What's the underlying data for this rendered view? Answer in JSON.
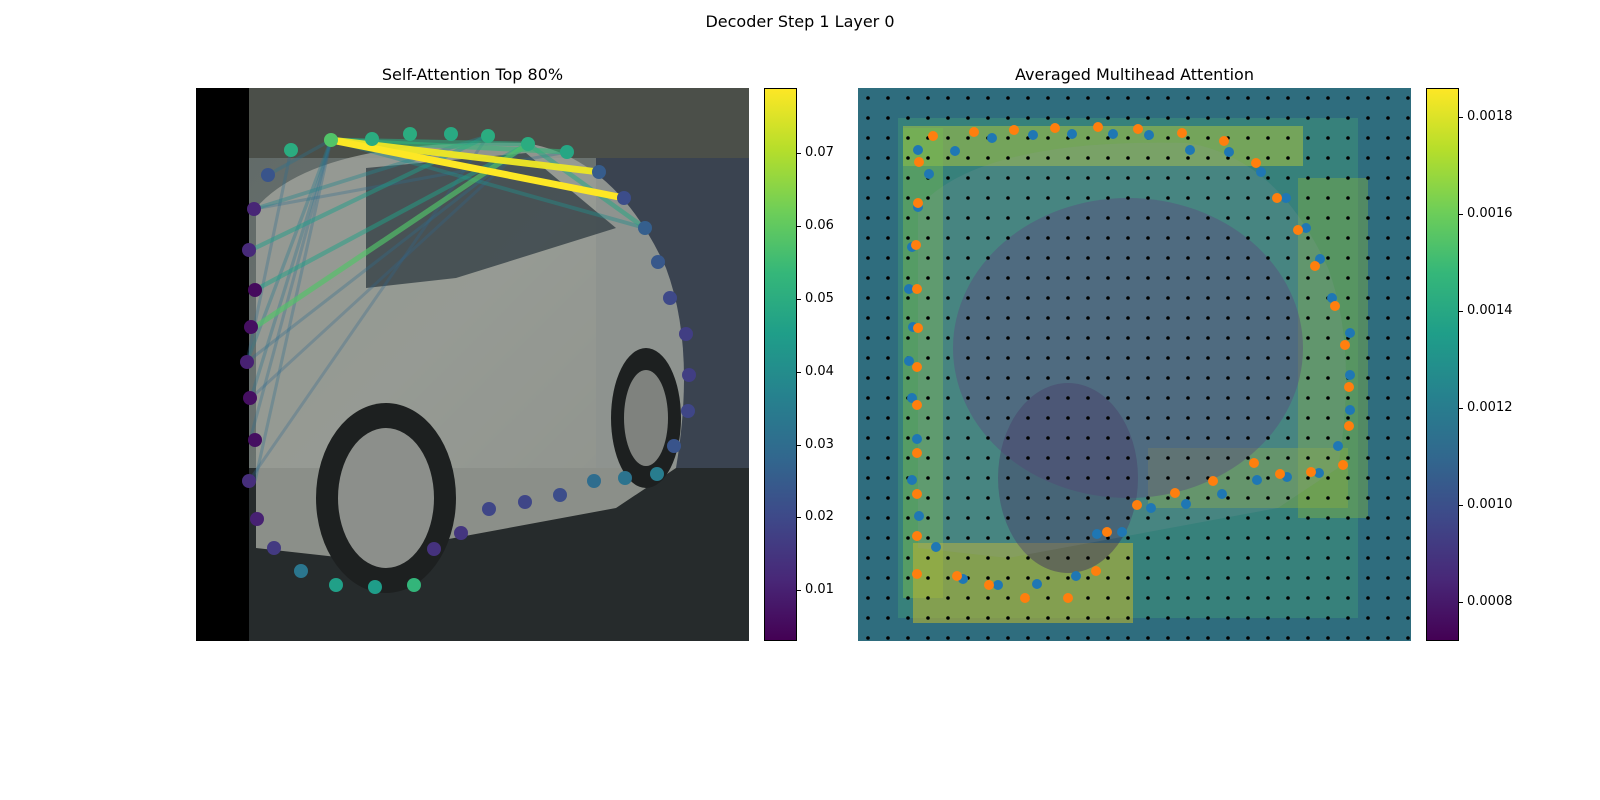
{
  "suptitle": "Decoder Step 1 Layer 0",
  "colormap": [
    "#440154",
    "#482878",
    "#3e4989",
    "#31688e",
    "#26828e",
    "#1f9e89",
    "#35b779",
    "#6ece58",
    "#b5de2b",
    "#fde725"
  ],
  "point_colors": {
    "blue": "#1f77b4",
    "orange": "#ff7f0e",
    "grid": "#000000"
  },
  "chart_data": [
    {
      "type": "scatter",
      "title": "Self-Attention Top 80%",
      "background": "photo of a silver car parked on a street with darker cars behind it",
      "colorbar": {
        "range": [
          0.003,
          0.079
        ],
        "ticks": [
          "0.01",
          "0.02",
          "0.03",
          "0.04",
          "0.05",
          "0.06",
          "0.07"
        ],
        "tick_values": [
          0.01,
          0.02,
          0.03,
          0.04,
          0.05,
          0.06,
          0.07
        ]
      },
      "points": [
        {
          "x": 135,
          "y": 52,
          "v": 0.058
        },
        {
          "x": 176,
          "y": 51,
          "v": 0.05
        },
        {
          "x": 214,
          "y": 46,
          "v": 0.05
        },
        {
          "x": 255,
          "y": 46,
          "v": 0.049
        },
        {
          "x": 292,
          "y": 48,
          "v": 0.05
        },
        {
          "x": 332,
          "y": 56,
          "v": 0.05
        },
        {
          "x": 371,
          "y": 64,
          "v": 0.048
        },
        {
          "x": 403,
          "y": 84,
          "v": 0.025
        },
        {
          "x": 428,
          "y": 110,
          "v": 0.021
        },
        {
          "x": 449,
          "y": 140,
          "v": 0.026
        },
        {
          "x": 462,
          "y": 174,
          "v": 0.024
        },
        {
          "x": 474,
          "y": 210,
          "v": 0.02
        },
        {
          "x": 490,
          "y": 246,
          "v": 0.017
        },
        {
          "x": 493,
          "y": 287,
          "v": 0.017
        },
        {
          "x": 492,
          "y": 323,
          "v": 0.019
        },
        {
          "x": 478,
          "y": 358,
          "v": 0.023
        },
        {
          "x": 461,
          "y": 386,
          "v": 0.035
        },
        {
          "x": 429,
          "y": 390,
          "v": 0.032
        },
        {
          "x": 398,
          "y": 393,
          "v": 0.03
        },
        {
          "x": 364,
          "y": 407,
          "v": 0.021
        },
        {
          "x": 329,
          "y": 414,
          "v": 0.019
        },
        {
          "x": 293,
          "y": 421,
          "v": 0.019
        },
        {
          "x": 265,
          "y": 445,
          "v": 0.015
        },
        {
          "x": 238,
          "y": 461,
          "v": 0.014
        },
        {
          "x": 218,
          "y": 497,
          "v": 0.053
        },
        {
          "x": 179,
          "y": 499,
          "v": 0.045
        },
        {
          "x": 140,
          "y": 497,
          "v": 0.046
        },
        {
          "x": 105,
          "y": 483,
          "v": 0.033
        },
        {
          "x": 78,
          "y": 460,
          "v": 0.016
        },
        {
          "x": 61,
          "y": 431,
          "v": 0.01
        },
        {
          "x": 53,
          "y": 393,
          "v": 0.013
        },
        {
          "x": 59,
          "y": 352,
          "v": 0.006
        },
        {
          "x": 54,
          "y": 310,
          "v": 0.006
        },
        {
          "x": 51,
          "y": 274,
          "v": 0.01
        },
        {
          "x": 55,
          "y": 239,
          "v": 0.006
        },
        {
          "x": 59,
          "y": 202,
          "v": 0.005
        },
        {
          "x": 53,
          "y": 162,
          "v": 0.012
        },
        {
          "x": 58,
          "y": 121,
          "v": 0.011
        },
        {
          "x": 72,
          "y": 87,
          "v": 0.023
        },
        {
          "x": 95,
          "y": 62,
          "v": 0.05
        }
      ],
      "edges": [
        {
          "from": [
            135,
            52
          ],
          "to": [
            428,
            110
          ],
          "v": 0.079
        },
        {
          "from": [
            135,
            52
          ],
          "to": [
            403,
            84
          ],
          "v": 0.077
        },
        {
          "from": [
            135,
            52
          ],
          "to": [
            371,
            64
          ],
          "v": 0.053
        },
        {
          "from": [
            135,
            52
          ],
          "to": [
            332,
            56
          ],
          "v": 0.05
        },
        {
          "from": [
            135,
            52
          ],
          "to": [
            449,
            140
          ],
          "v": 0.04
        },
        {
          "from": [
            332,
            56
          ],
          "to": [
            59,
            239
          ],
          "v": 0.058
        },
        {
          "from": [
            332,
            56
          ],
          "to": [
            59,
            202
          ],
          "v": 0.046
        },
        {
          "from": [
            332,
            56
          ],
          "to": [
            449,
            140
          ],
          "v": 0.048
        },
        {
          "from": [
            292,
            48
          ],
          "to": [
            55,
            162
          ],
          "v": 0.045
        },
        {
          "from": [
            292,
            48
          ],
          "to": [
            58,
            121
          ],
          "v": 0.038
        },
        {
          "from": [
            135,
            52
          ],
          "to": [
            51,
            274
          ],
          "v": 0.034
        },
        {
          "from": [
            135,
            52
          ],
          "to": [
            55,
            310
          ],
          "v": 0.032
        },
        {
          "from": [
            135,
            52
          ],
          "to": [
            54,
            352
          ],
          "v": 0.03
        },
        {
          "from": [
            135,
            52
          ],
          "to": [
            59,
            393
          ],
          "v": 0.03
        },
        {
          "from": [
            95,
            62
          ],
          "to": [
            51,
            274
          ],
          "v": 0.03
        },
        {
          "from": [
            332,
            56
          ],
          "to": [
            51,
            274
          ],
          "v": 0.03
        },
        {
          "from": [
            332,
            56
          ],
          "to": [
            55,
            310
          ],
          "v": 0.028
        },
        {
          "from": [
            292,
            48
          ],
          "to": [
            53,
            393
          ],
          "v": 0.028
        },
        {
          "from": [
            371,
            64
          ],
          "to": [
            58,
            121
          ],
          "v": 0.03
        },
        {
          "from": [
            135,
            52
          ],
          "to": [
            72,
            87
          ],
          "v": 0.032
        }
      ]
    },
    {
      "type": "heatmap",
      "title": "Averaged Multihead Attention",
      "background": "the same car photo overlaid with an attention heatmap; high attention along the car outline",
      "colorbar": {
        "range": [
          0.00072,
          0.00186
        ],
        "ticks": [
          "0.0008",
          "0.0010",
          "0.0012",
          "0.0014",
          "0.0016",
          "0.0018"
        ],
        "tick_values": [
          0.0008,
          0.001,
          0.0012,
          0.0014,
          0.0016,
          0.0018
        ]
      },
      "grid_spacing": 20,
      "points_blue": [
        [
          60,
          62
        ],
        [
          97,
          63
        ],
        [
          134,
          50
        ],
        [
          175,
          47
        ],
        [
          214,
          46
        ],
        [
          255,
          46
        ],
        [
          291,
          47
        ],
        [
          332,
          62
        ],
        [
          371,
          64
        ],
        [
          403,
          84
        ],
        [
          428,
          110
        ],
        [
          448,
          140
        ],
        [
          462,
          171
        ],
        [
          474,
          210
        ],
        [
          492,
          245
        ],
        [
          492,
          287
        ],
        [
          492,
          322
        ],
        [
          480,
          358
        ],
        [
          461,
          385
        ],
        [
          429,
          389
        ],
        [
          399,
          392
        ],
        [
          364,
          406
        ],
        [
          328,
          416
        ],
        [
          293,
          420
        ],
        [
          264,
          444
        ],
        [
          239,
          446
        ],
        [
          218,
          488
        ],
        [
          179,
          496
        ],
        [
          140,
          497
        ],
        [
          105,
          491
        ],
        [
          78,
          459
        ],
        [
          61,
          428
        ],
        [
          54,
          392
        ],
        [
          59,
          351
        ],
        [
          54,
          310
        ],
        [
          51,
          273
        ],
        [
          55,
          239
        ],
        [
          51,
          201
        ],
        [
          54,
          159
        ],
        [
          60,
          119
        ],
        [
          71,
          86
        ]
      ],
      "points_orange": [
        [
          75,
          48
        ],
        [
          116,
          44
        ],
        [
          156,
          42
        ],
        [
          197,
          40
        ],
        [
          240,
          39
        ],
        [
          280,
          41
        ],
        [
          324,
          45
        ],
        [
          366,
          53
        ],
        [
          398,
          75
        ],
        [
          419,
          110
        ],
        [
          440,
          142
        ],
        [
          457,
          178
        ],
        [
          477,
          218
        ],
        [
          487,
          257
        ],
        [
          491,
          299
        ],
        [
          491,
          338
        ],
        [
          485,
          377
        ],
        [
          453,
          384
        ],
        [
          422,
          386
        ],
        [
          396,
          375
        ],
        [
          355,
          393
        ],
        [
          317,
          405
        ],
        [
          279,
          417
        ],
        [
          249,
          444
        ],
        [
          238,
          483
        ],
        [
          210,
          510
        ],
        [
          167,
          510
        ],
        [
          131,
          497
        ],
        [
          99,
          488
        ],
        [
          59,
          486
        ],
        [
          59,
          448
        ],
        [
          59,
          406
        ],
        [
          59,
          365
        ],
        [
          59,
          317
        ],
        [
          59,
          279
        ],
        [
          60,
          240
        ],
        [
          59,
          201
        ],
        [
          58,
          157
        ],
        [
          60,
          115
        ],
        [
          61,
          74
        ]
      ]
    }
  ]
}
